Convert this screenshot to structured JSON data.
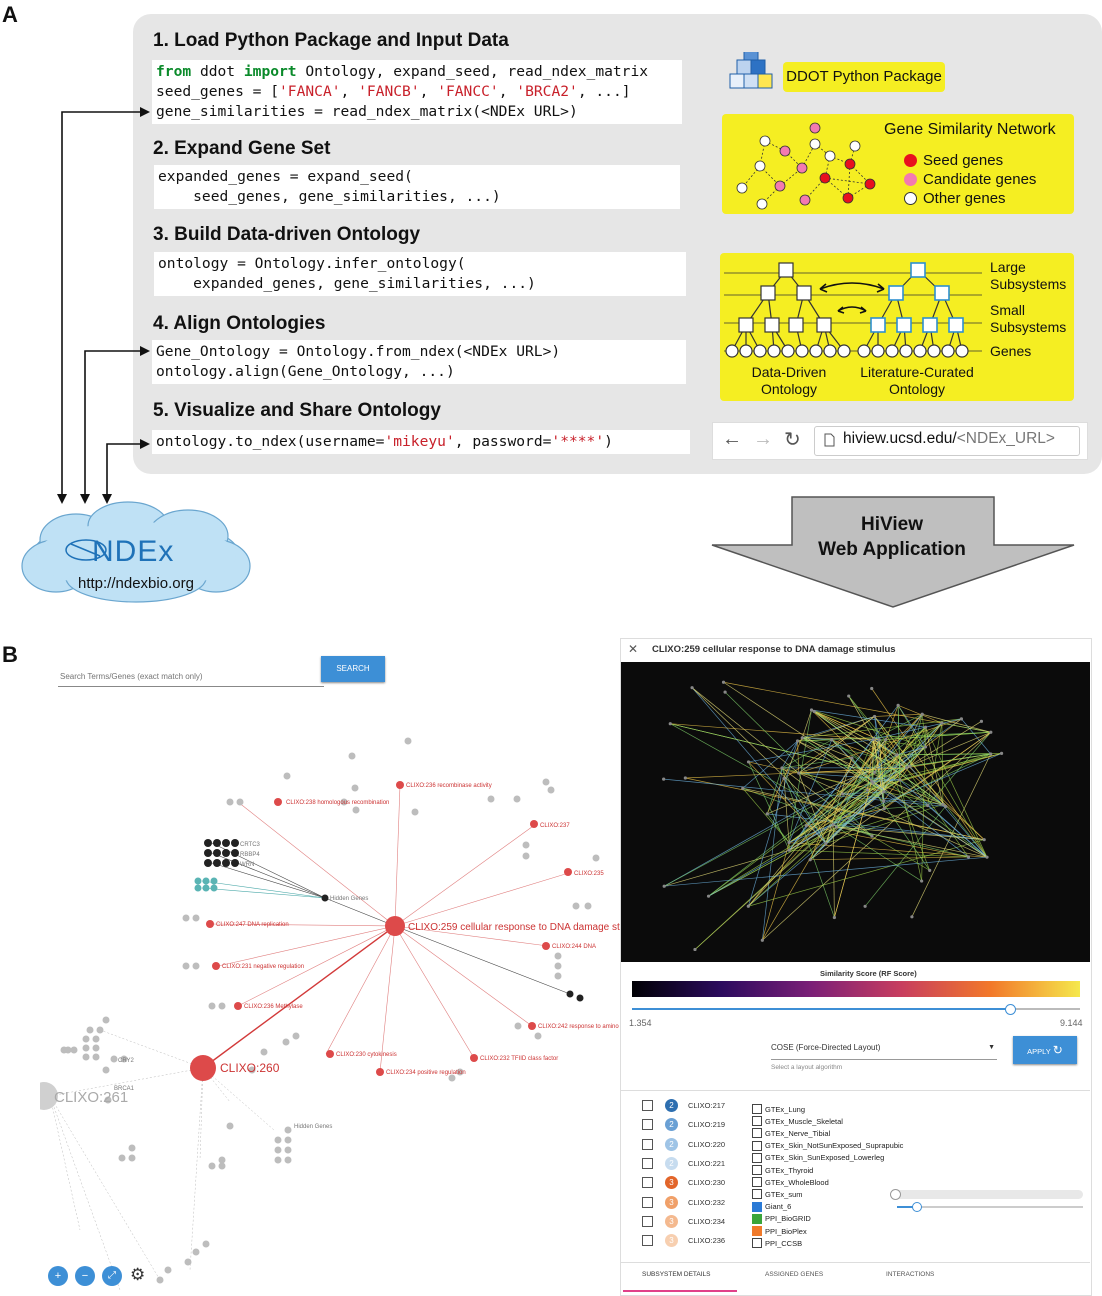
{
  "panel_a": {
    "label": "A",
    "steps": [
      {
        "title": "1. Load Python Package and Input Data"
      },
      {
        "title": "2. Expand Gene Set"
      },
      {
        "title": "3. Build Data-driven Ontology"
      },
      {
        "title": "4. Align Ontologies"
      },
      {
        "title": "5. Visualize and Share Ontology"
      }
    ],
    "code": {
      "c1l1_kw1": "from",
      "c1l1_a": " ddot ",
      "c1l1_kw2": "import",
      "c1l1_b": " Ontology, expand_seed, read_ndex_matrix",
      "c1l2_a": "seed_genes = [",
      "c1l2_s1": "'FANCA'",
      "c1l2_s2": "'FANCB'",
      "c1l2_s3": "'FANCC'",
      "c1l2_s4": "'BRCA2'",
      "c1l2_b": ", ...]",
      "c1l3": "gene_similarities = read_ndex_matrix(<NDEx URL>)",
      "c2l1": "expanded_genes = expand_seed(",
      "c2l2": "    seed_genes, gene_similarities, ...)",
      "c3l1": "ontology = Ontology.infer_ontology(",
      "c3l2": "    expanded_genes, gene_similarities, ...)",
      "c4l1": "Gene_Ontology = Ontology.from_ndex(<NDEx URL>)",
      "c4l2": "ontology.align(Gene_Ontology, ...)",
      "c5l1_a": "ontology.to_ndex(username=",
      "c5l1_s1": "'mikeyu'",
      "c5l1_b": ", password=",
      "c5l1_s2": "'****'",
      "c5l1_c": ")"
    },
    "ddot_package": "DDOT Python Package",
    "gene_network": {
      "title": "Gene Similarity Network",
      "legend": [
        "Seed genes",
        "Candidate genes",
        "Other genes"
      ],
      "colors": {
        "seed": "#e8101e",
        "candidate": "#f37ab0",
        "other": "#ffffff"
      }
    },
    "ontology_box": {
      "large": "Large\nSubsystems",
      "small": "Small\nSubsystems",
      "genes": "Genes",
      "data_driven": "Data-Driven\nOntology",
      "literature": "Literature-Curated\nOntology"
    },
    "browser_url_a": "hiview.ucsd.edu/",
    "browser_url_b": "<NDEx_URL>",
    "hiview": "HiView\nWeb Application",
    "ndex": {
      "logo": "NDEx",
      "url": "http://ndexbio.org"
    }
  },
  "panel_b": {
    "label": "B",
    "search_placeholder": "Search Terms/Genes (exact match only)",
    "search_button": "SEARCH",
    "nodes": {
      "main": "CLIXO:259 cellular response to DNA damage st",
      "n260": "CLIXO:260",
      "n261": "CLIXO:261"
    },
    "detail_title": "CLIXO:259 cellular response to DNA damage stimulus",
    "similarity_label": "Similarity Score (RF Score)",
    "slider_min": "1.354",
    "slider_max": "9.144",
    "layout_select": "COSE (Force-Directed Layout)",
    "layout_hint": "Select a layout algorithm",
    "apply_button": "APPLY",
    "rows": [
      {
        "id": "CLIXO:217",
        "badge": "2",
        "color": "#2e6fb0"
      },
      {
        "id": "CLIXO:219",
        "badge": "2",
        "color": "#6aa0d4"
      },
      {
        "id": "CLIXO:220",
        "badge": "2",
        "color": "#9fc4e6"
      },
      {
        "id": "CLIXO:221",
        "badge": "2",
        "color": "#c7dcef"
      },
      {
        "id": "CLIXO:230",
        "badge": "3",
        "color": "#e2652a"
      },
      {
        "id": "CLIXO:232",
        "badge": "3",
        "color": "#f0a069"
      },
      {
        "id": "CLIXO:234",
        "badge": "3",
        "color": "#f4b98f"
      },
      {
        "id": "CLIXO:236",
        "badge": "3",
        "color": "#f7cfb0"
      }
    ],
    "gtex": [
      "GTEx_Lung",
      "GTEx_Muscle_Skeletal",
      "GTEx_Nerve_Tibial",
      "GTEx_Skin_NotSunExposed_Suprapubic",
      "GTEx_Skin_SunExposed_Lowerleg",
      "GTEx_Thyroid",
      "GTEx_WholeBlood",
      "GTEx_sum",
      "Giant_6",
      "PPI_BioGRID",
      "PPI_BioPlex",
      "PPI_CCSB"
    ],
    "tabs": [
      "SUBSYSTEM DETAILS",
      "ASSIGNED GENES",
      "INTERACTIONS"
    ]
  }
}
